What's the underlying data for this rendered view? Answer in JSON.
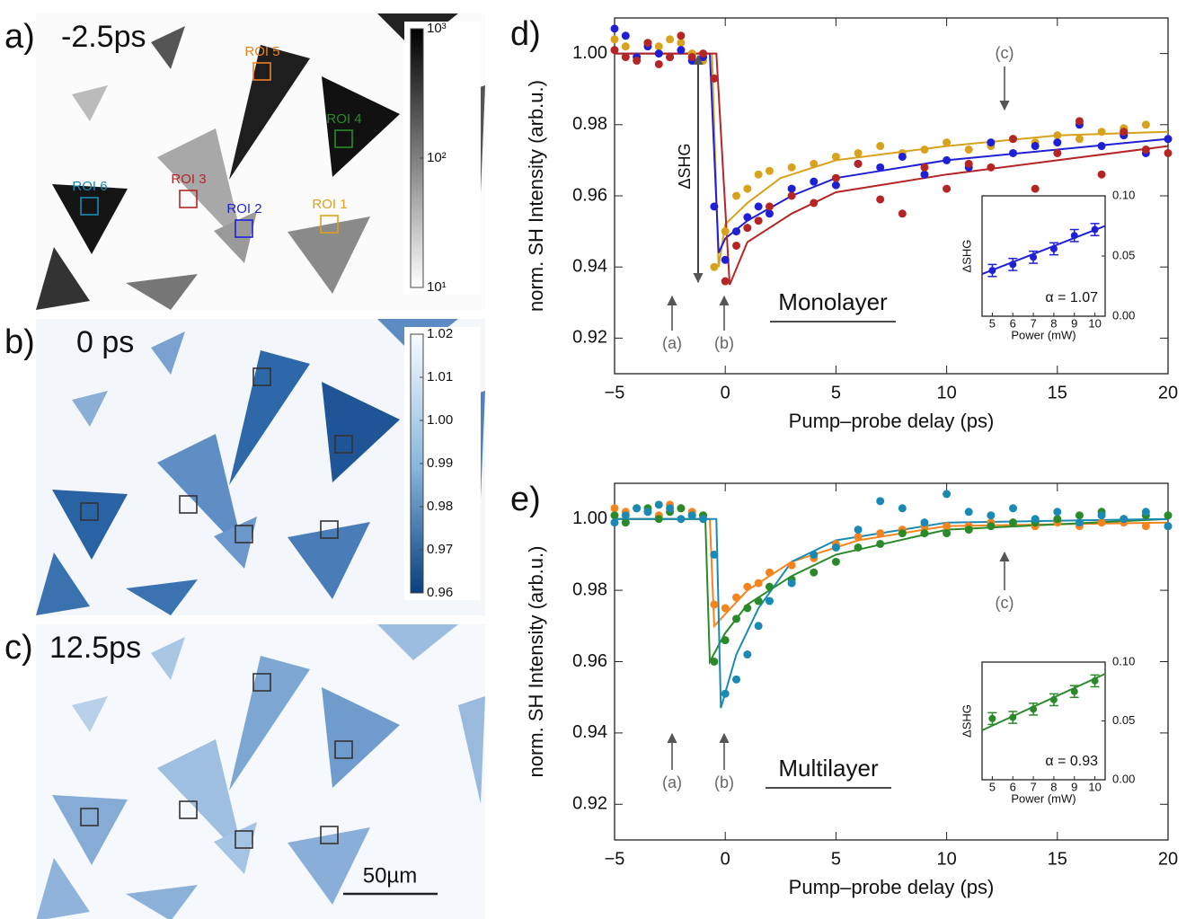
{
  "images": [
    {
      "label": "a)",
      "time": "-2.5ps",
      "colorbar": {
        "scale": "log",
        "lim": [
          10,
          1000
        ],
        "ticks": [
          {
            "value": 10,
            "label": "10¹"
          },
          {
            "value": 100,
            "label": "10²"
          },
          {
            "value": 1000,
            "label": "10³"
          }
        ]
      },
      "rois": [
        {
          "label": "ROI 1",
          "color": "#d9a21c"
        },
        {
          "label": "ROI 2",
          "color": "#1f1fd6"
        },
        {
          "label": "ROI 3",
          "color": "#b52525"
        },
        {
          "label": "ROI 4",
          "color": "#2a8a2a"
        },
        {
          "label": "ROI 5",
          "color": "#f08020"
        },
        {
          "label": "ROI 6",
          "color": "#1a8ab4"
        }
      ]
    },
    {
      "label": "b)",
      "time": "0 ps",
      "colorbar": {
        "scale": "linear",
        "lim": [
          0.96,
          1.02
        ],
        "ticks": [
          0.96,
          0.97,
          0.98,
          0.99,
          {
            "value": 1,
            "label": "1.00"
          },
          1.01,
          1.02
        ]
      }
    },
    {
      "label": "c)",
      "time": "12.5ps",
      "scale_bar": "50µm"
    }
  ],
  "chart_data": [
    {
      "type": "scatter",
      "label": "d)",
      "xlabel": "Pump–probe delay (ps)",
      "ylabel": "norm. SH Intensity (arb.u.)",
      "xlim": [
        -5,
        20
      ],
      "ylim": [
        0.91,
        1.01
      ],
      "xticks": [
        {
          "value": -5,
          "label": "−5"
        },
        0,
        5,
        10,
        15,
        20
      ],
      "yticks": [
        0.92,
        0.94,
        0.96,
        0.98,
        {
          "value": 1,
          "label": "1.00"
        }
      ],
      "annotations": [
        "(a)",
        "(b)",
        "(c)",
        "ΔSHG",
        "Monolayer"
      ],
      "x": [
        -5,
        -4.5,
        -4,
        -3.5,
        -3,
        -2.5,
        -2,
        -1.5,
        -1,
        -0.5,
        0,
        0.5,
        1,
        1.5,
        2,
        3,
        4,
        5,
        6,
        7,
        8,
        9,
        10,
        11,
        12,
        13,
        14,
        15,
        16,
        17,
        18,
        19,
        20
      ],
      "series": [
        {
          "color": "#d9a21c",
          "values": [
            1.004,
            1.002,
            0.999,
            1.003,
            1.002,
            1.004,
            1.003,
            1.0,
            0.998,
            0.94,
            0.95,
            0.96,
            0.962,
            0.966,
            0.967,
            0.968,
            0.969,
            0.971,
            0.972,
            0.974,
            0.972,
            0.973,
            0.975,
            0.973,
            0.974,
            0.976,
            0.975,
            0.977,
            0.976,
            0.978,
            0.979,
            0.98,
            0.976
          ]
        },
        {
          "color": "#1f1fd6",
          "values": [
            1.007,
            1.005,
            0.999,
            1.002,
            1.0,
            0.999,
            1.001,
            0.998,
            0.999,
            0.957,
            0.942,
            0.95,
            0.954,
            0.957,
            0.955,
            0.962,
            0.964,
            0.963,
            0.969,
            0.968,
            0.971,
            0.966,
            0.97,
            0.968,
            0.975,
            0.972,
            0.974,
            0.975,
            0.98,
            0.974,
            0.977,
            0.972,
            0.976
          ]
        },
        {
          "color": "#b52525",
          "values": [
            1.001,
            0.999,
            0.998,
            1.003,
            0.997,
            0.999,
            1.005,
            0.999,
            1.0,
            0.993,
            0.936,
            0.946,
            0.951,
            0.953,
            0.957,
            0.96,
            0.958,
            0.965,
            0.969,
            0.959,
            0.955,
            0.968,
            0.962,
            0.969,
            0.968,
            0.976,
            0.962,
            0.972,
            0.981,
            0.966,
            0.978,
            0.973,
            0.972
          ]
        }
      ],
      "fits": [
        {
          "color": "#d9a21c",
          "x": [
            -5,
            -0.6,
            -0.3,
            0,
            1,
            2.5,
            5,
            10,
            15,
            20
          ],
          "values": [
            1.0,
            1.0,
            0.94,
            0.952,
            0.958,
            0.965,
            0.97,
            0.974,
            0.977,
            0.978
          ]
        },
        {
          "color": "#1f1fd6",
          "x": [
            -5,
            -0.7,
            -0.3,
            0,
            1,
            3,
            5,
            10,
            15,
            20
          ],
          "values": [
            1.0,
            1.0,
            0.944,
            0.948,
            0.953,
            0.96,
            0.965,
            0.97,
            0.973,
            0.976
          ]
        },
        {
          "color": "#b52525",
          "x": [
            -5,
            -0.4,
            0.2,
            1,
            3,
            5,
            10,
            15,
            20
          ],
          "values": [
            1.0,
            1.0,
            0.935,
            0.947,
            0.955,
            0.961,
            0.966,
            0.97,
            0.974
          ]
        }
      ]
    },
    {
      "type": "errorbar",
      "xlabel": "Power (mW)",
      "ylabel": "ΔSHG",
      "annotation": "α = 1.07",
      "xlim": [
        4.5,
        10.5
      ],
      "ylim": [
        0,
        0.1
      ],
      "xticks": [
        5,
        6,
        7,
        8,
        9,
        10
      ],
      "yticks": [
        {
          "value": 0,
          "label": "0.00"
        },
        0.05,
        {
          "value": 0.1,
          "label": "0.10"
        }
      ],
      "x": [
        5,
        6,
        7,
        8,
        9,
        10
      ],
      "series": [
        {
          "color": "#1f1fd6",
          "values": [
            0.038,
            0.043,
            0.049,
            0.056,
            0.067,
            0.072
          ],
          "errors": [
            0.005,
            0.005,
            0.005,
            0.005,
            0.005,
            0.005
          ]
        }
      ],
      "fits": [
        {
          "color": "#1f1fd6",
          "x": [
            4.5,
            10.5
          ],
          "values": [
            0.035,
            0.075
          ]
        }
      ]
    },
    {
      "type": "scatter",
      "label": "e)",
      "xlabel": "Pump–probe delay (ps)",
      "ylabel": "norm. SH Intensity (arb.u.)",
      "xlim": [
        -5,
        20
      ],
      "ylim": [
        0.91,
        1.01
      ],
      "xticks": [
        {
          "value": -5,
          "label": "−5"
        },
        0,
        5,
        10,
        15,
        20
      ],
      "yticks": [
        0.92,
        0.94,
        0.96,
        0.98,
        {
          "value": 1,
          "label": "1.00"
        }
      ],
      "annotations": [
        "(a)",
        "(b)",
        "(c)",
        "Multilayer"
      ],
      "x": [
        -5,
        -4.5,
        -4,
        -3.5,
        -3,
        -2.5,
        -2,
        -1.5,
        -1,
        -0.5,
        0,
        0.5,
        1,
        1.5,
        2,
        3,
        4,
        5,
        6,
        7,
        8,
        9,
        10,
        11,
        12,
        13,
        14,
        15,
        16,
        17,
        18,
        19,
        20
      ],
      "series": [
        {
          "color": "#f5841f",
          "values": [
            1.003,
            1.002,
            1.003,
            1.002,
            1.001,
            1.004,
            1.003,
            1.002,
            1.001,
            0.976,
            0.975,
            0.978,
            0.981,
            0.982,
            0.985,
            0.987,
            0.989,
            0.993,
            0.995,
            0.996,
            0.997,
            0.998,
            0.998,
            0.998,
            0.999,
            0.999,
            0.998,
            0.999,
            0.998,
            0.999,
            0.999,
            0.998,
            0.998
          ]
        },
        {
          "color": "#2a8a2a",
          "values": [
            1.001,
            0.999,
            1.003,
            1.003,
            1.0,
            1.002,
            1.003,
            1.001,
            1.001,
            0.96,
            0.966,
            0.972,
            0.975,
            0.977,
            0.981,
            0.983,
            0.985,
            0.988,
            0.992,
            0.993,
            0.996,
            0.996,
            0.996,
            0.997,
            0.998,
            0.999,
            0.999,
            1.0,
            1.001,
            1.002,
            1.0,
            1.001,
            1.001
          ]
        },
        {
          "color": "#1a8ab4",
          "values": [
            0.999,
            1.001,
            1.003,
            1.002,
            1.004,
            1.003,
            1.0,
            1.001,
            1.0,
            0.99,
            0.951,
            0.955,
            0.962,
            0.97,
            0.977,
            0.982,
            0.99,
            0.992,
            0.997,
            1.005,
            1.003,
            0.999,
            1.007,
            1.002,
            1.001,
            1.003,
            1.0,
            1.002,
            0.999,
            1.001,
            1.0,
            1.002,
            0.998
          ]
        }
      ],
      "fits": [
        {
          "color": "#f5841f",
          "x": [
            -5,
            -0.7,
            -0.5,
            1,
            3,
            6,
            10,
            20
          ],
          "values": [
            1.0,
            1.0,
            0.97,
            0.98,
            0.988,
            0.994,
            0.998,
            0.999
          ]
        },
        {
          "color": "#2a8a2a",
          "x": [
            -5,
            -0.9,
            -0.7,
            0,
            1,
            3,
            5,
            10,
            20
          ],
          "values": [
            1.0,
            1.0,
            0.96,
            0.968,
            0.976,
            0.984,
            0.99,
            0.997,
            1.0
          ]
        },
        {
          "color": "#1a8ab4",
          "x": [
            -5,
            -0.4,
            -0.2,
            0.5,
            1.5,
            3,
            5,
            10,
            20
          ],
          "values": [
            1.0,
            1.0,
            0.947,
            0.962,
            0.975,
            0.988,
            0.994,
            0.999,
            1.0
          ]
        }
      ]
    },
    {
      "type": "errorbar",
      "xlabel": "Power (mW)",
      "ylabel": "ΔSHG",
      "annotation": "α = 0.93",
      "xlim": [
        4.5,
        10.5
      ],
      "ylim": [
        0,
        0.1
      ],
      "xticks": [
        5,
        6,
        7,
        8,
        9,
        10
      ],
      "yticks": [
        {
          "value": 0,
          "label": "0.00"
        },
        0.05,
        {
          "value": 0.1,
          "label": "0.10"
        }
      ],
      "x": [
        5,
        6,
        7,
        8,
        9,
        10
      ],
      "series": [
        {
          "color": "#2a8a2a",
          "values": [
            0.052,
            0.053,
            0.06,
            0.068,
            0.075,
            0.084
          ],
          "errors": [
            0.005,
            0.005,
            0.005,
            0.005,
            0.005,
            0.005
          ]
        }
      ],
      "fits": [
        {
          "color": "#2a8a2a",
          "x": [
            4.5,
            10.5
          ],
          "values": [
            0.042,
            0.09
          ]
        }
      ]
    }
  ]
}
